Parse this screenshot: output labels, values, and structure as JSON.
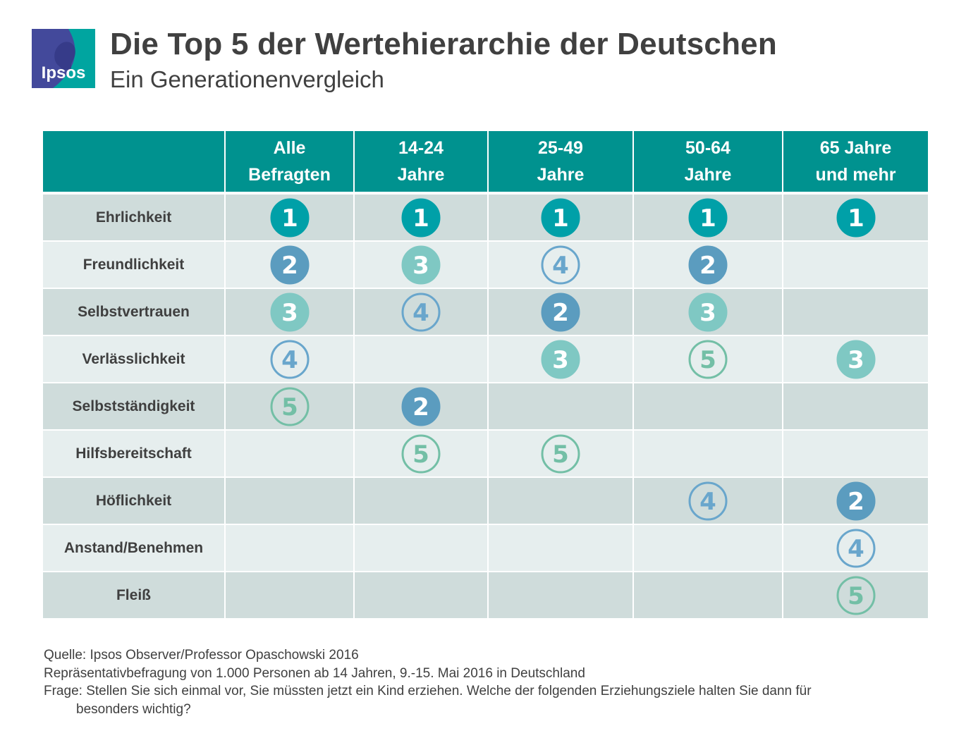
{
  "brand": {
    "logo_text": "Ipsos",
    "color_blue": "#43499b",
    "color_teal": "#00a5a0"
  },
  "title": "Die Top 5 der Wertehierarchie der Deutschen",
  "subtitle": "Ein Generationenvergleich",
  "chart_data": {
    "type": "table",
    "columns": [
      [
        "Alle",
        "Befragten"
      ],
      [
        "14-24",
        "Jahre"
      ],
      [
        "25-49",
        "Jahre"
      ],
      [
        "50-64",
        "Jahre"
      ],
      [
        "65 Jahre",
        "und mehr"
      ]
    ],
    "rows": [
      {
        "label": "Ehrlichkeit",
        "ranks": [
          1,
          1,
          1,
          1,
          1
        ]
      },
      {
        "label": "Freundlichkeit",
        "ranks": [
          2,
          3,
          4,
          2,
          null
        ]
      },
      {
        "label": "Selbstvertrauen",
        "ranks": [
          3,
          4,
          2,
          3,
          null
        ]
      },
      {
        "label": "Verlässlichkeit",
        "ranks": [
          4,
          null,
          3,
          5,
          3
        ]
      },
      {
        "label": "Selbstständigkeit",
        "ranks": [
          5,
          2,
          null,
          null,
          null
        ]
      },
      {
        "label": "Hilfsbereitschaft",
        "ranks": [
          null,
          5,
          5,
          null,
          null
        ]
      },
      {
        "label": "Höflichkeit",
        "ranks": [
          null,
          null,
          null,
          4,
          2
        ]
      },
      {
        "label": "Anstand/Benehmen",
        "ranks": [
          null,
          null,
          null,
          null,
          4
        ]
      },
      {
        "label": "Fleiß",
        "ranks": [
          null,
          null,
          null,
          null,
          5
        ]
      }
    ],
    "rank_styles": {
      "1": {
        "fill": "#00a0a8",
        "stroke": "#00a0a8",
        "text": "#ffffff"
      },
      "2": {
        "fill": "#5b9cbf",
        "stroke": "#5b9cbf",
        "text": "#ffffff"
      },
      "3": {
        "fill": "#7fc8c3",
        "stroke": "#7fc8c3",
        "text": "#ffffff"
      },
      "4": {
        "fill": "none",
        "stroke": "#69a6cc",
        "text": "#69a6cc"
      },
      "5": {
        "fill": "none",
        "stroke": "#73bfa6",
        "text": "#73bfa6"
      }
    },
    "header_color": "#00928f"
  },
  "footer": {
    "source": "Quelle: Ipsos Observer/Professor  Opaschowski 2016",
    "method": "Repräsentativbefragung von 1.000 Personen ab 14 Jahren, 9.-15. Mai 2016  in Deutschland",
    "question_line1": "Frage: Stellen Sie sich einmal vor, Sie müssten jetzt ein Kind erziehen. Welche der folgenden Erziehungsziele halten Sie dann für",
    "question_line2": "besonders wichtig?"
  }
}
